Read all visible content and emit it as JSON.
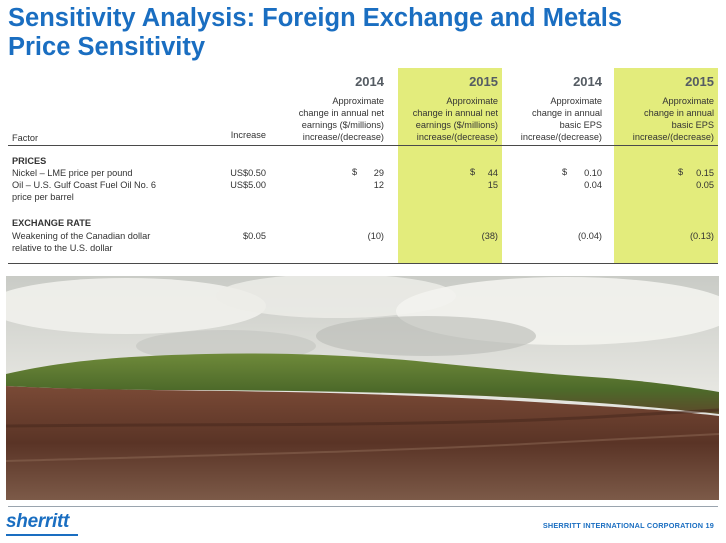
{
  "slide": {
    "title_line1": "Sensitivity Analysis: Foreign Exchange and Metals",
    "title_line2": "Price Sensitivity"
  },
  "table": {
    "factor_header": "Factor",
    "increase_header": "Increase",
    "columns": [
      {
        "year": "2014",
        "head": [
          "Approximate",
          "change in annual net",
          "earnings ($/millions)",
          "increase/(decrease)"
        ],
        "highlight": false
      },
      {
        "year": "2015",
        "head": [
          "Approximate",
          "change in annual net",
          "earnings ($/millions)",
          "increase/(decrease)"
        ],
        "highlight": true
      },
      {
        "year": "2014",
        "head": [
          "Approximate",
          "change in annual",
          "basic EPS",
          "increase/(decrease)"
        ],
        "highlight": false
      },
      {
        "year": "2015",
        "head": [
          "Approximate",
          "change in annual",
          "basic EPS",
          "increase/(decrease)"
        ],
        "highlight": true
      }
    ],
    "highlight_color": "#e3ec7c",
    "sections": [
      {
        "title": "PRICES",
        "rows": [
          {
            "factor": "Nickel – LME price per pound",
            "increase": "US$0.50",
            "cur": [
              "$",
              "$",
              "$",
              "$"
            ],
            "values": [
              "29",
              "44",
              "0.10",
              "0.15"
            ]
          },
          {
            "factor": "Oil – U.S. Gulf Coast Fuel Oil No. 6",
            "factor2": "price per barrel",
            "increase": "US$5.00",
            "values": [
              "12",
              "15",
              "0.04",
              "0.05"
            ]
          }
        ]
      },
      {
        "title": "EXCHANGE RATE",
        "rows": [
          {
            "factor": "Weakening of the Canadian dollar",
            "factor2": "relative to the U.S. dollar",
            "increase": "$0.05",
            "values": [
              "(10)",
              "(38)",
              "(0.04)",
              "(0.13)"
            ]
          }
        ]
      }
    ]
  },
  "photo": {
    "subject": "landscape with red laterite soil, green vegetated berm and cloudy sky"
  },
  "footer": {
    "logo": "sherritt",
    "corporation": "SHERRITT INTERNATIONAL CORPORATION 19"
  },
  "colors": {
    "brand_blue": "#1a6ec1"
  }
}
